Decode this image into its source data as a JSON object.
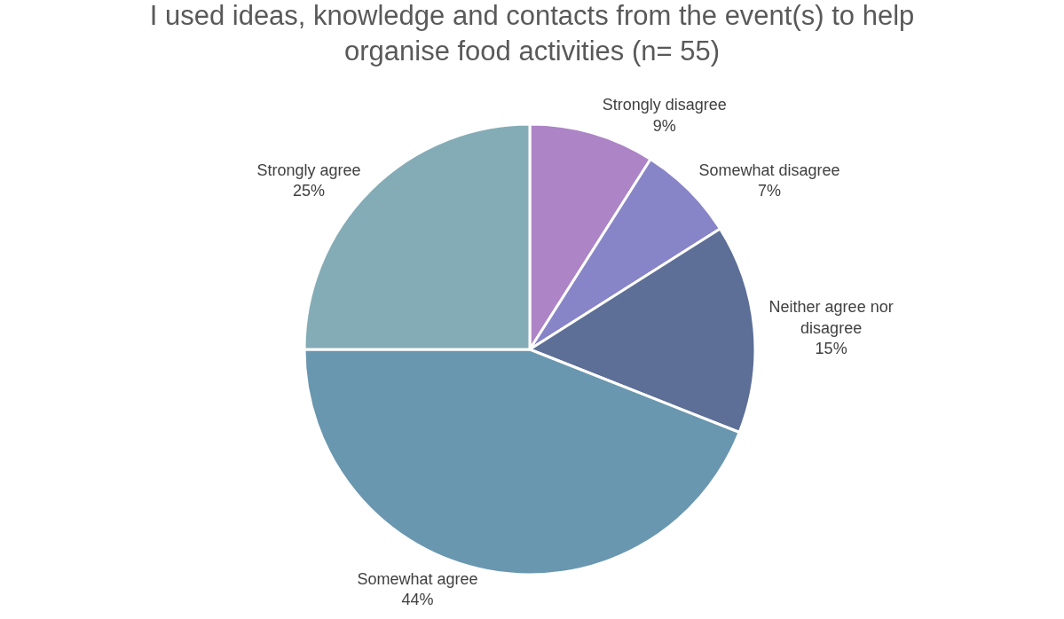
{
  "chart_data": {
    "type": "pie",
    "title": "I used ideas, knowledge and contacts from the event(s) to help organise food activities (n= 55)",
    "categories": [
      "Strongly disagree",
      "Somewhat disagree",
      "Neither agree nor disagree",
      "Somewhat agree",
      "Strongly agree"
    ],
    "values": [
      9,
      7,
      15,
      44,
      25
    ],
    "value_labels": [
      "9%",
      "7%",
      "15%",
      "44%",
      "25%"
    ],
    "colors": [
      "#ad84c6",
      "#8784c7",
      "#5d6f96",
      "#6997af",
      "#84acb6"
    ],
    "legend": false
  }
}
